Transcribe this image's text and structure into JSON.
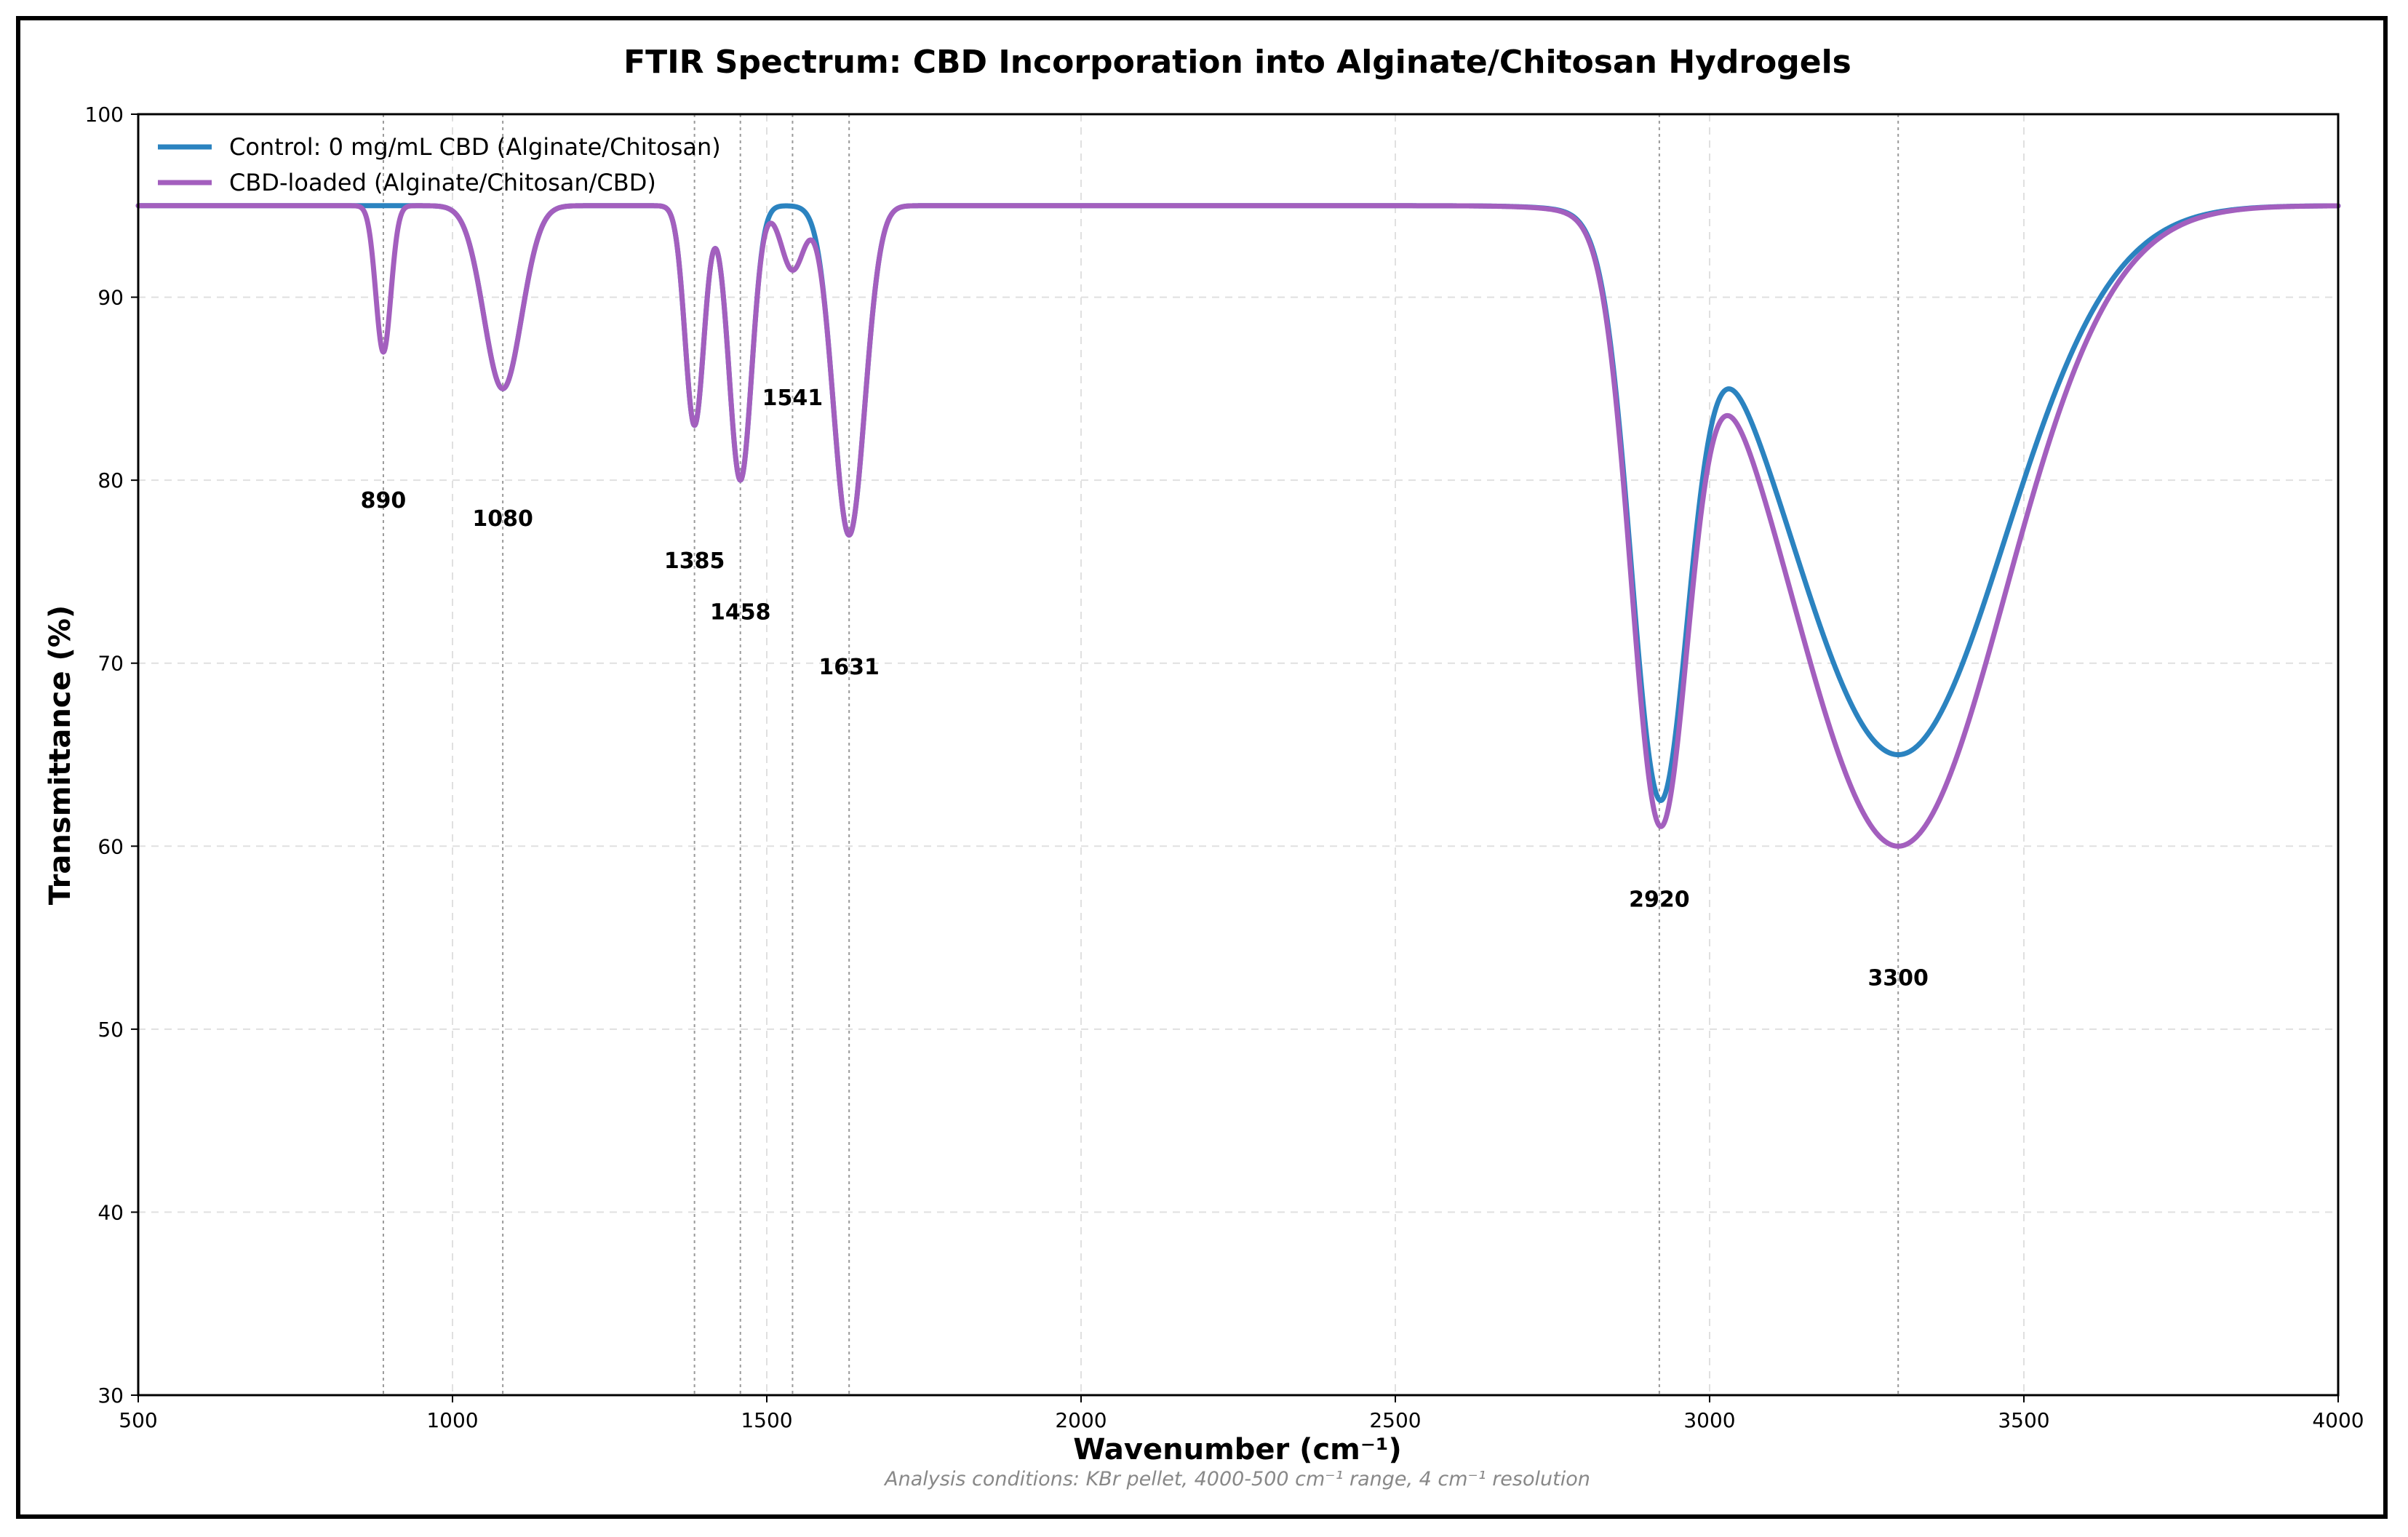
{
  "chart_data": {
    "type": "line",
    "title": "FTIR Spectrum: CBD Incorporation into Alginate/Chitosan Hydrogels",
    "xlabel": "Wavenumber (cm⁻¹)",
    "ylabel": "Transmittance (%)",
    "xlim": [
      500,
      4000
    ],
    "ylim": [
      30,
      100
    ],
    "x_ticks": [
      500,
      1000,
      1500,
      2000,
      2500,
      3000,
      3500,
      4000
    ],
    "y_ticks": [
      30,
      40,
      50,
      60,
      70,
      80,
      90,
      100
    ],
    "grid": true,
    "legend_position": "top-left",
    "baseline": 95,
    "series": [
      {
        "name": "Control: 0 mg/mL CBD (Alginate/Chitosan)",
        "color": "#2b83c0",
        "bands": [
          {
            "center": 1080,
            "depth": 10,
            "width": 30
          },
          {
            "center": 1385,
            "depth": 12,
            "width": 15
          },
          {
            "center": 1458,
            "depth": 15,
            "width": 18
          },
          {
            "center": 1631,
            "depth": 18,
            "width": 25
          },
          {
            "center": 2920,
            "depth": 30,
            "width": 45
          },
          {
            "center": 3300,
            "depth": 30,
            "width": 170
          }
        ]
      },
      {
        "name": "CBD-loaded (Alginate/Chitosan/CBD)",
        "color": "#a35fbe",
        "bands": [
          {
            "center": 890,
            "depth": 8,
            "width": 12
          },
          {
            "center": 1080,
            "depth": 10,
            "width": 30
          },
          {
            "center": 1385,
            "depth": 12,
            "width": 15
          },
          {
            "center": 1458,
            "depth": 15,
            "width": 18
          },
          {
            "center": 1541,
            "depth": 3.5,
            "width": 18
          },
          {
            "center": 1631,
            "depth": 18,
            "width": 25
          },
          {
            "center": 2920,
            "depth": 31,
            "width": 45
          },
          {
            "center": 3300,
            "depth": 35,
            "width": 170
          }
        ]
      }
    ],
    "peak_annotations": [
      {
        "label": "890",
        "x": 890,
        "y": 78.5
      },
      {
        "label": "1080",
        "x": 1080,
        "y": 77.5
      },
      {
        "label": "1385",
        "x": 1385,
        "y": 75.2
      },
      {
        "label": "1458",
        "x": 1458,
        "y": 72.4
      },
      {
        "label": "1541",
        "x": 1541,
        "y": 84.1
      },
      {
        "label": "1631",
        "x": 1631,
        "y": 69.4
      },
      {
        "label": "2920",
        "x": 2920,
        "y": 56.7
      },
      {
        "label": "3300",
        "x": 3300,
        "y": 52.4
      }
    ],
    "footnote": "Analysis conditions: KBr pellet, 4000-500 cm⁻¹ range, 4 cm⁻¹ resolution"
  }
}
